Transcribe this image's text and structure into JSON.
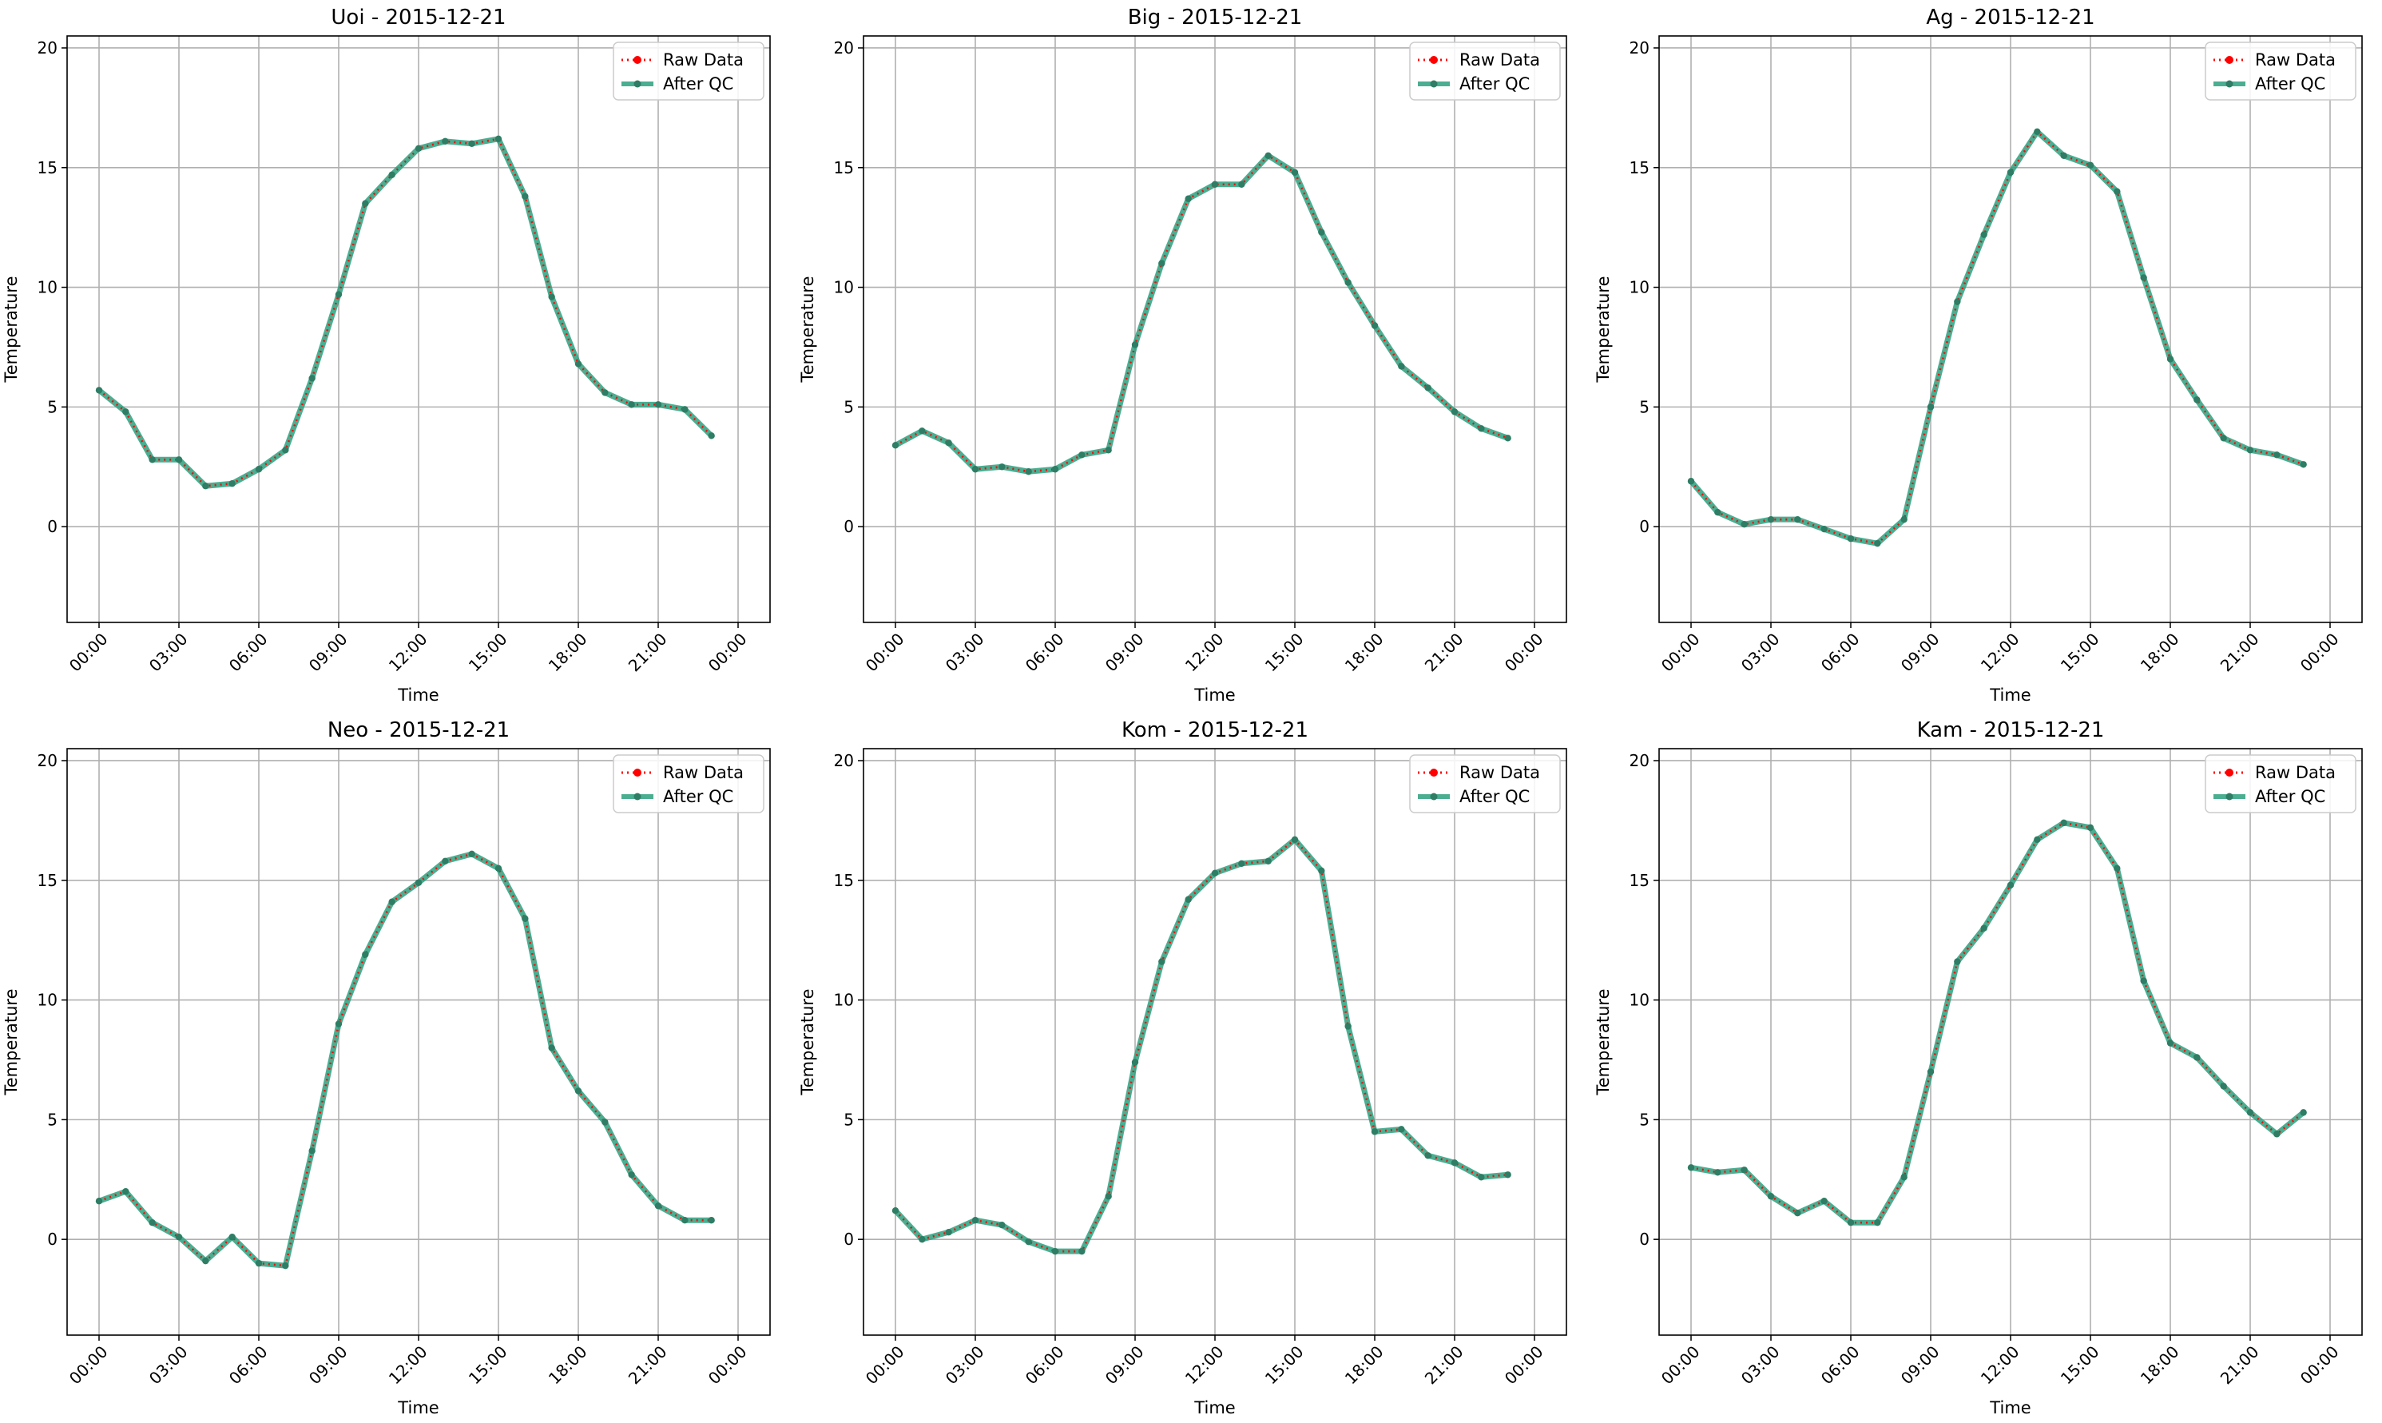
{
  "colors": {
    "raw": "#ff0000",
    "qc": "#2ca07e",
    "qc_marker": "#2e7d64",
    "grid": "#b0b0b0",
    "axes": "#000000"
  },
  "chart_data": [
    {
      "type": "line",
      "title": "Uoi - 2015-12-21",
      "xlabel": "Time",
      "ylabel": "Temperature",
      "x": [
        "00:00",
        "01:00",
        "02:00",
        "03:00",
        "04:00",
        "05:00",
        "06:00",
        "07:00",
        "08:00",
        "09:00",
        "10:00",
        "11:00",
        "12:00",
        "13:00",
        "14:00",
        "15:00",
        "16:00",
        "17:00",
        "18:00",
        "19:00",
        "20:00",
        "21:00",
        "22:00",
        "23:00"
      ],
      "xticks": [
        "00:00",
        "03:00",
        "06:00",
        "09:00",
        "12:00",
        "15:00",
        "18:00",
        "21:00",
        "00:00"
      ],
      "yticks": [
        0,
        5,
        10,
        15,
        20
      ],
      "ylim": [
        -4,
        20.5
      ],
      "grid": true,
      "legend": "top-right",
      "series": [
        {
          "name": "Raw Data",
          "values": [
            5.7,
            4.8,
            2.8,
            2.8,
            1.7,
            1.8,
            2.4,
            3.2,
            6.2,
            9.7,
            13.5,
            14.7,
            15.8,
            16.1,
            16.0,
            16.2,
            13.8,
            9.6,
            6.8,
            5.6,
            5.1,
            5.1,
            4.9,
            3.8
          ]
        },
        {
          "name": "After QC",
          "values": [
            5.7,
            4.8,
            2.8,
            2.8,
            1.7,
            1.8,
            2.4,
            3.2,
            6.2,
            9.7,
            13.5,
            14.7,
            15.8,
            16.1,
            16.0,
            16.2,
            13.8,
            9.6,
            6.8,
            5.6,
            5.1,
            5.1,
            4.9,
            3.8
          ]
        }
      ]
    },
    {
      "type": "line",
      "title": "Big - 2015-12-21",
      "xlabel": "Time",
      "ylabel": "Temperature",
      "x": [
        "00:00",
        "01:00",
        "02:00",
        "03:00",
        "04:00",
        "05:00",
        "06:00",
        "07:00",
        "08:00",
        "09:00",
        "10:00",
        "11:00",
        "12:00",
        "13:00",
        "14:00",
        "15:00",
        "16:00",
        "17:00",
        "18:00",
        "19:00",
        "20:00",
        "21:00",
        "22:00",
        "23:00"
      ],
      "xticks": [
        "00:00",
        "03:00",
        "06:00",
        "09:00",
        "12:00",
        "15:00",
        "18:00",
        "21:00",
        "00:00"
      ],
      "yticks": [
        0,
        5,
        10,
        15,
        20
      ],
      "ylim": [
        -4,
        20.5
      ],
      "grid": true,
      "legend": "top-right",
      "series": [
        {
          "name": "Raw Data",
          "values": [
            3.4,
            4.0,
            3.5,
            2.4,
            2.5,
            2.3,
            2.4,
            3.0,
            3.2,
            7.6,
            11.0,
            13.7,
            14.3,
            14.3,
            15.5,
            14.8,
            12.3,
            10.2,
            8.4,
            6.7,
            5.8,
            4.8,
            4.1,
            3.7
          ]
        },
        {
          "name": "After QC",
          "values": [
            3.4,
            4.0,
            3.5,
            2.4,
            2.5,
            2.3,
            2.4,
            3.0,
            3.2,
            7.6,
            11.0,
            13.7,
            14.3,
            14.3,
            15.5,
            14.8,
            12.3,
            10.2,
            8.4,
            6.7,
            5.8,
            4.8,
            4.1,
            3.7
          ]
        }
      ]
    },
    {
      "type": "line",
      "title": "Ag - 2015-12-21",
      "xlabel": "Time",
      "ylabel": "Temperature",
      "x": [
        "00:00",
        "01:00",
        "02:00",
        "03:00",
        "04:00",
        "05:00",
        "06:00",
        "07:00",
        "08:00",
        "09:00",
        "10:00",
        "11:00",
        "12:00",
        "13:00",
        "14:00",
        "15:00",
        "16:00",
        "17:00",
        "18:00",
        "19:00",
        "20:00",
        "21:00",
        "22:00",
        "23:00"
      ],
      "xticks": [
        "00:00",
        "03:00",
        "06:00",
        "09:00",
        "12:00",
        "15:00",
        "18:00",
        "21:00",
        "00:00"
      ],
      "yticks": [
        0,
        5,
        10,
        15,
        20
      ],
      "ylim": [
        -4,
        20.5
      ],
      "grid": true,
      "legend": "top-right",
      "series": [
        {
          "name": "Raw Data",
          "values": [
            1.9,
            0.6,
            0.1,
            0.3,
            0.3,
            -0.1,
            -0.5,
            -0.7,
            0.3,
            5.0,
            9.4,
            12.2,
            14.8,
            16.5,
            15.5,
            15.1,
            14.0,
            10.4,
            7.0,
            5.3,
            3.7,
            3.2,
            3.0,
            2.6
          ]
        },
        {
          "name": "After QC",
          "values": [
            1.9,
            0.6,
            0.1,
            0.3,
            0.3,
            -0.1,
            -0.5,
            -0.7,
            0.3,
            5.0,
            9.4,
            12.2,
            14.8,
            16.5,
            15.5,
            15.1,
            14.0,
            10.4,
            7.0,
            5.3,
            3.7,
            3.2,
            3.0,
            2.6
          ]
        }
      ]
    },
    {
      "type": "line",
      "title": "Neo - 2015-12-21",
      "xlabel": "Time",
      "ylabel": "Temperature",
      "x": [
        "00:00",
        "01:00",
        "02:00",
        "03:00",
        "04:00",
        "05:00",
        "06:00",
        "07:00",
        "08:00",
        "09:00",
        "10:00",
        "11:00",
        "12:00",
        "13:00",
        "14:00",
        "15:00",
        "16:00",
        "17:00",
        "18:00",
        "19:00",
        "20:00",
        "21:00",
        "22:00",
        "23:00"
      ],
      "xticks": [
        "00:00",
        "03:00",
        "06:00",
        "09:00",
        "12:00",
        "15:00",
        "18:00",
        "21:00",
        "00:00"
      ],
      "yticks": [
        0,
        5,
        10,
        15,
        20
      ],
      "ylim": [
        -4,
        20.5
      ],
      "grid": true,
      "legend": "top-right",
      "series": [
        {
          "name": "Raw Data",
          "values": [
            1.6,
            2.0,
            0.7,
            0.1,
            -0.9,
            0.1,
            -1.0,
            -1.1,
            3.7,
            9.0,
            11.9,
            14.1,
            14.9,
            15.8,
            16.1,
            15.5,
            13.4,
            8.0,
            6.2,
            4.9,
            2.7,
            1.4,
            0.8,
            0.8
          ]
        },
        {
          "name": "After QC",
          "values": [
            1.6,
            2.0,
            0.7,
            0.1,
            -0.9,
            0.1,
            -1.0,
            -1.1,
            3.7,
            9.0,
            11.9,
            14.1,
            14.9,
            15.8,
            16.1,
            15.5,
            13.4,
            8.0,
            6.2,
            4.9,
            2.7,
            1.4,
            0.8,
            0.8
          ]
        }
      ]
    },
    {
      "type": "line",
      "title": "Kom - 2015-12-21",
      "xlabel": "Time",
      "ylabel": "Temperature",
      "x": [
        "00:00",
        "01:00",
        "02:00",
        "03:00",
        "04:00",
        "05:00",
        "06:00",
        "07:00",
        "08:00",
        "09:00",
        "10:00",
        "11:00",
        "12:00",
        "13:00",
        "14:00",
        "15:00",
        "16:00",
        "17:00",
        "18:00",
        "19:00",
        "20:00",
        "21:00",
        "22:00",
        "23:00"
      ],
      "xticks": [
        "00:00",
        "03:00",
        "06:00",
        "09:00",
        "12:00",
        "15:00",
        "18:00",
        "21:00",
        "00:00"
      ],
      "yticks": [
        0,
        5,
        10,
        15,
        20
      ],
      "ylim": [
        -4,
        20.5
      ],
      "grid": true,
      "legend": "top-right",
      "series": [
        {
          "name": "Raw Data",
          "values": [
            1.2,
            0.0,
            0.3,
            0.8,
            0.6,
            -0.1,
            -0.5,
            -0.5,
            1.8,
            7.4,
            11.6,
            14.2,
            15.3,
            15.7,
            15.8,
            16.7,
            15.4,
            8.9,
            4.5,
            4.6,
            3.5,
            3.2,
            2.6,
            2.7
          ]
        },
        {
          "name": "After QC",
          "values": [
            1.2,
            0.0,
            0.3,
            0.8,
            0.6,
            -0.1,
            -0.5,
            -0.5,
            1.8,
            7.4,
            11.6,
            14.2,
            15.3,
            15.7,
            15.8,
            16.7,
            15.4,
            8.9,
            4.5,
            4.6,
            3.5,
            3.2,
            2.6,
            2.7
          ]
        }
      ]
    },
    {
      "type": "line",
      "title": "Kam - 2015-12-21",
      "xlabel": "Time",
      "ylabel": "Temperature",
      "x": [
        "00:00",
        "01:00",
        "02:00",
        "03:00",
        "04:00",
        "05:00",
        "06:00",
        "07:00",
        "08:00",
        "09:00",
        "10:00",
        "11:00",
        "12:00",
        "13:00",
        "14:00",
        "15:00",
        "16:00",
        "17:00",
        "18:00",
        "19:00",
        "20:00",
        "21:00",
        "22:00",
        "23:00"
      ],
      "xticks": [
        "00:00",
        "03:00",
        "06:00",
        "09:00",
        "12:00",
        "15:00",
        "18:00",
        "21:00",
        "00:00"
      ],
      "yticks": [
        0,
        5,
        10,
        15,
        20
      ],
      "ylim": [
        -4,
        20.5
      ],
      "grid": true,
      "legend": "top-right",
      "series": [
        {
          "name": "Raw Data",
          "values": [
            3.0,
            2.8,
            2.9,
            1.8,
            1.1,
            1.6,
            0.7,
            0.7,
            2.6,
            7.0,
            11.6,
            13.0,
            14.8,
            16.7,
            17.4,
            17.2,
            15.5,
            10.8,
            8.2,
            7.6,
            6.4,
            5.3,
            4.4,
            5.3
          ]
        },
        {
          "name": "After QC",
          "values": [
            3.0,
            2.8,
            2.9,
            1.8,
            1.1,
            1.6,
            0.7,
            0.7,
            2.6,
            7.0,
            11.6,
            13.0,
            14.8,
            16.7,
            17.4,
            17.2,
            15.5,
            10.8,
            8.2,
            7.6,
            6.4,
            5.3,
            4.4,
            5.3
          ]
        }
      ]
    }
  ]
}
